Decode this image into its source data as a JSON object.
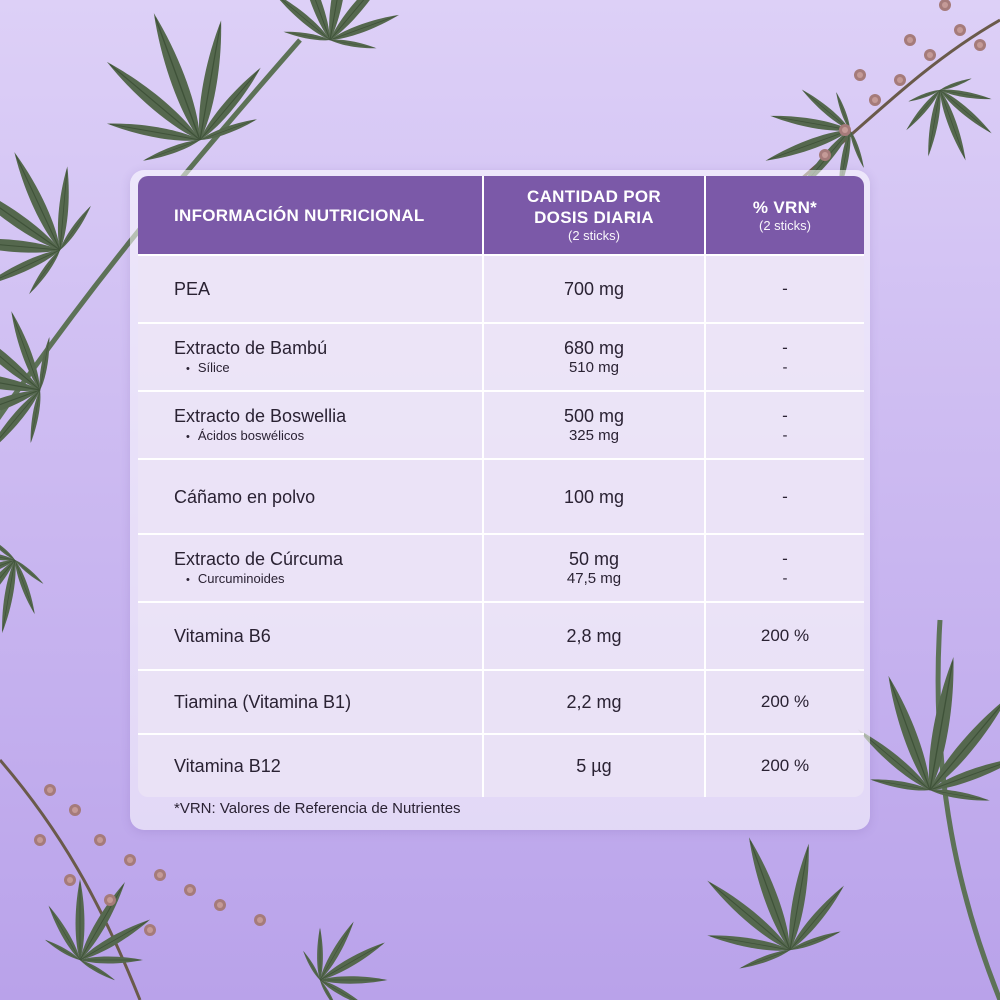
{
  "colors": {
    "header": "#7b59a8",
    "leaf": "#55684e",
    "flower": "#a57b7a",
    "background": "#cbb9f1"
  },
  "decorations": [
    "cannabis-leaf",
    "cannabis-leaf",
    "flower-sprig",
    "flower-sprig"
  ],
  "table": {
    "headers": {
      "col1": "INFORMACIÓN NUTRICIONAL",
      "col2_line1": "CANTIDAD POR",
      "col2_line2": "DOSIS DIARIA",
      "col2_sub": "(2 sticks)",
      "col3": "% VRN*",
      "col3_sub": "(2 sticks)"
    },
    "rows": [
      {
        "name": "PEA",
        "amount": "700 mg",
        "vrn": "-"
      },
      {
        "name": "Extracto de Bambú",
        "sub": "Sílice",
        "amount": "680 mg",
        "sub_amount": "510 mg",
        "vrn": "-",
        "sub_vrn": "-"
      },
      {
        "name": "Extracto de Boswellia",
        "sub": "Ácidos boswélicos",
        "amount": "500 mg",
        "sub_amount": "325 mg",
        "vrn": "-",
        "sub_vrn": "-"
      },
      {
        "name": "Cáñamo en polvo",
        "amount": "100 mg",
        "vrn": "-"
      },
      {
        "name": "Extracto de Cúrcuma",
        "sub": "Curcuminoides",
        "amount": "50 mg",
        "sub_amount": "47,5 mg",
        "vrn": "-",
        "sub_vrn": "-"
      },
      {
        "name": "Vitamina B6",
        "amount": "2,8 mg",
        "vrn": "200 %"
      },
      {
        "name": "Tiamina (Vitamina B1)",
        "amount": "2,2 mg",
        "vrn": "200 %"
      },
      {
        "name": "Vitamina B12",
        "amount": "5 µg",
        "vrn": "200 %"
      }
    ]
  },
  "footnote": "*VRN: Valores de Referencia de Nutrientes"
}
